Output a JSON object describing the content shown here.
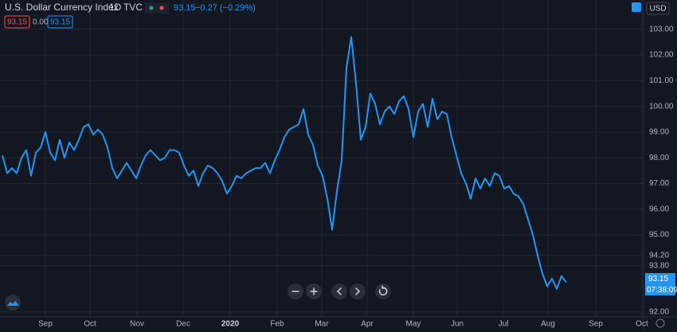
{
  "chart_data": {
    "type": "line",
    "title": "U.S. Dollar Currency Index",
    "interval": "1D",
    "source": "TVC",
    "last": "93.15",
    "change": "−0.27 (−0.29%)",
    "bid": "93.15",
    "spread": "0.00",
    "ask": "93.15",
    "currency": "USD",
    "price_label": "93.15",
    "countdown": "07:38:09",
    "color": "#2196f3",
    "grid": true,
    "xlim": [
      -0.5,
      134.17
    ],
    "xticks": [
      {
        "value": 9,
        "label": "Sep"
      },
      {
        "value": 18.33,
        "label": "Oct"
      },
      {
        "value": 28.17,
        "label": "Nov"
      },
      {
        "value": 37.83,
        "label": "Dec"
      },
      {
        "value": 47.67,
        "label": "2020"
      },
      {
        "value": 57.5,
        "label": "Feb"
      },
      {
        "value": 66.83,
        "label": "Mar"
      },
      {
        "value": 76.33,
        "label": "Apr"
      },
      {
        "value": 86,
        "label": "May"
      },
      {
        "value": 95.17,
        "label": "Jun"
      },
      {
        "value": 104.83,
        "label": "Jul"
      },
      {
        "value": 114.17,
        "label": "Aug"
      },
      {
        "value": 124.17,
        "label": "Sep"
      },
      {
        "value": 133.83,
        "label": "Oct"
      }
    ],
    "ylim": [
      91.81,
      104.14
    ],
    "yticks": [
      {
        "value": 103,
        "label": "103.00"
      },
      {
        "value": 102,
        "label": "102.00"
      },
      {
        "value": 101,
        "label": "101.00"
      },
      {
        "value": 100,
        "label": "100.00"
      },
      {
        "value": 99,
        "label": "99.00"
      },
      {
        "value": 98,
        "label": "98.00"
      },
      {
        "value": 97,
        "label": "97.00"
      },
      {
        "value": 96,
        "label": "96.00"
      },
      {
        "value": 95,
        "label": "95.00"
      },
      {
        "value": 94.2,
        "label": "94.20"
      },
      {
        "value": 93.8,
        "label": "93.80"
      },
      {
        "value": 92,
        "label": "92.00"
      }
    ],
    "values": [
      98.1,
      97.4,
      97.6,
      97.4,
      98.0,
      98.3,
      97.3,
      98.2,
      98.4,
      99.0,
      98.2,
      97.9,
      98.7,
      98.0,
      98.6,
      98.3,
      98.7,
      99.2,
      99.3,
      98.9,
      99.1,
      98.9,
      98.4,
      97.6,
      97.2,
      97.5,
      97.8,
      97.5,
      97.2,
      97.7,
      98.1,
      98.3,
      98.1,
      97.9,
      98.0,
      98.3,
      98.3,
      98.2,
      97.7,
      97.3,
      97.5,
      96.9,
      97.4,
      97.7,
      97.6,
      97.4,
      97.1,
      96.6,
      96.9,
      97.3,
      97.2,
      97.4,
      97.5,
      97.6,
      97.6,
      97.8,
      97.4,
      97.9,
      98.3,
      98.8,
      99.1,
      99.2,
      99.3,
      99.9,
      98.9,
      98.5,
      97.7,
      97.3,
      96.4,
      95.2,
      96.7,
      97.9,
      101.5,
      102.7,
      100.9,
      98.7,
      99.2,
      100.5,
      100.1,
      99.3,
      99.8,
      100.0,
      99.7,
      100.2,
      100.4,
      99.9,
      98.8,
      99.8,
      100.1,
      99.2,
      100.3,
      99.5,
      99.8,
      99.7,
      98.8,
      98.1,
      97.4,
      97.0,
      96.4,
      97.2,
      96.8,
      97.2,
      96.9,
      97.4,
      97.3,
      96.8,
      96.9,
      96.6,
      96.5,
      96.2,
      95.6,
      95.0,
      94.2,
      93.5,
      93.0,
      93.3,
      92.9,
      93.4,
      93.15
    ]
  }
}
